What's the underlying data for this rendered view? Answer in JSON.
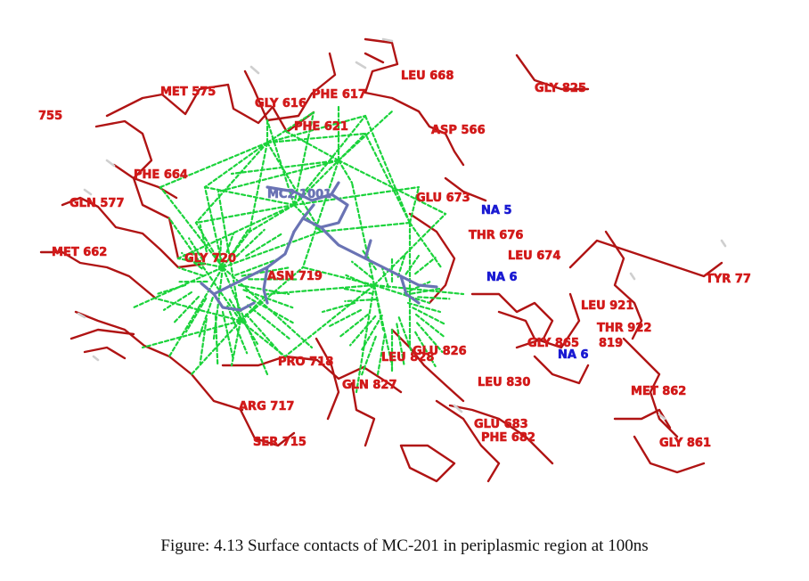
{
  "colors": {
    "residue": "#b01414",
    "residue_label": "#d21a1a",
    "ligand": "#6a73b4",
    "contact": "#1bd33b",
    "ion_label": "#1a1ad2",
    "hydrogen": "#cfcfcf"
  },
  "figure": {
    "caption": "Figure: 4.13 Surface contacts of MC-201 in periplasmic region at 100ns",
    "ligand_label": "MC2 1001",
    "residue_labels": [
      "755",
      "MET 575",
      "GLY 616",
      "PHE 617",
      "LEU 668",
      "GLY 825",
      "PHE 621",
      "ASP 566",
      "PHE 664",
      "GLN 577",
      "GLU 673",
      "NA 5",
      "MET 662",
      "THR 676",
      "LEU 674",
      "GLY 720",
      "ASN 719",
      "NA 6",
      "TYR 77",
      "LEU 921",
      "THR 922",
      "GLY 865",
      "819",
      "NA 6",
      "GLU 826",
      "PRO 718",
      "LEU 828",
      "GLN 827",
      "LEU 830",
      "MET 862",
      "ARG 717",
      "GLU 683",
      "PHE 682",
      "GLY 861",
      "SER 715"
    ]
  }
}
